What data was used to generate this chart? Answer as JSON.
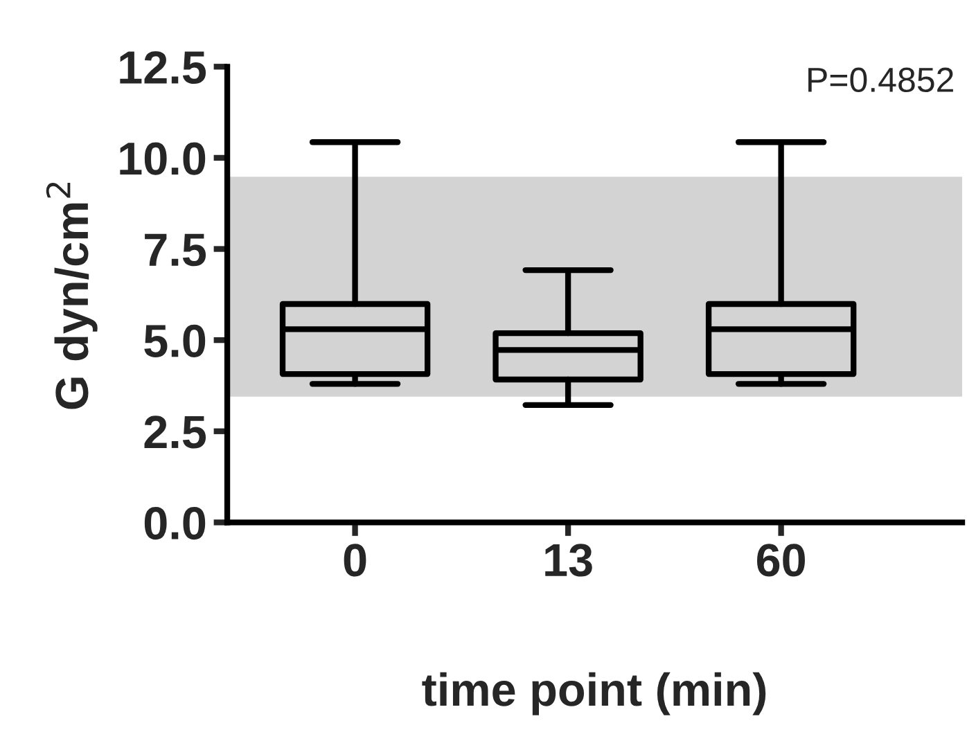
{
  "chart_data": {
    "type": "box",
    "xlabel": "time point (min)",
    "ylabel": "G dyn/cm$^{2}$",
    "categories": [
      "0",
      "13",
      "60"
    ],
    "boxes": [
      {
        "low": 3.8,
        "q1": 4.07,
        "median": 5.3,
        "q3": 5.99,
        "high": 10.43
      },
      {
        "low": 3.22,
        "q1": 3.92,
        "median": 4.73,
        "q3": 5.19,
        "high": 6.92
      },
      {
        "low": 3.8,
        "q1": 4.07,
        "median": 5.3,
        "q3": 5.99,
        "high": 10.43
      }
    ],
    "ylim": [
      0,
      12.5
    ],
    "yticks": [
      {
        "value": 0,
        "label": "0.0"
      },
      {
        "value": 2.5,
        "label": "2.5"
      },
      {
        "value": 5,
        "label": "5.0"
      },
      {
        "value": 7.5,
        "label": "7.5"
      },
      {
        "value": 10,
        "label": "10.0"
      },
      {
        "value": 12.5,
        "label": "12.5"
      }
    ],
    "bands": [
      {
        "axis": "y",
        "from": 3.45,
        "to": 9.48,
        "color": "#d3d3d3"
      }
    ],
    "annotations": [
      "P=0.4852"
    ],
    "grid": false,
    "legend": false
  }
}
